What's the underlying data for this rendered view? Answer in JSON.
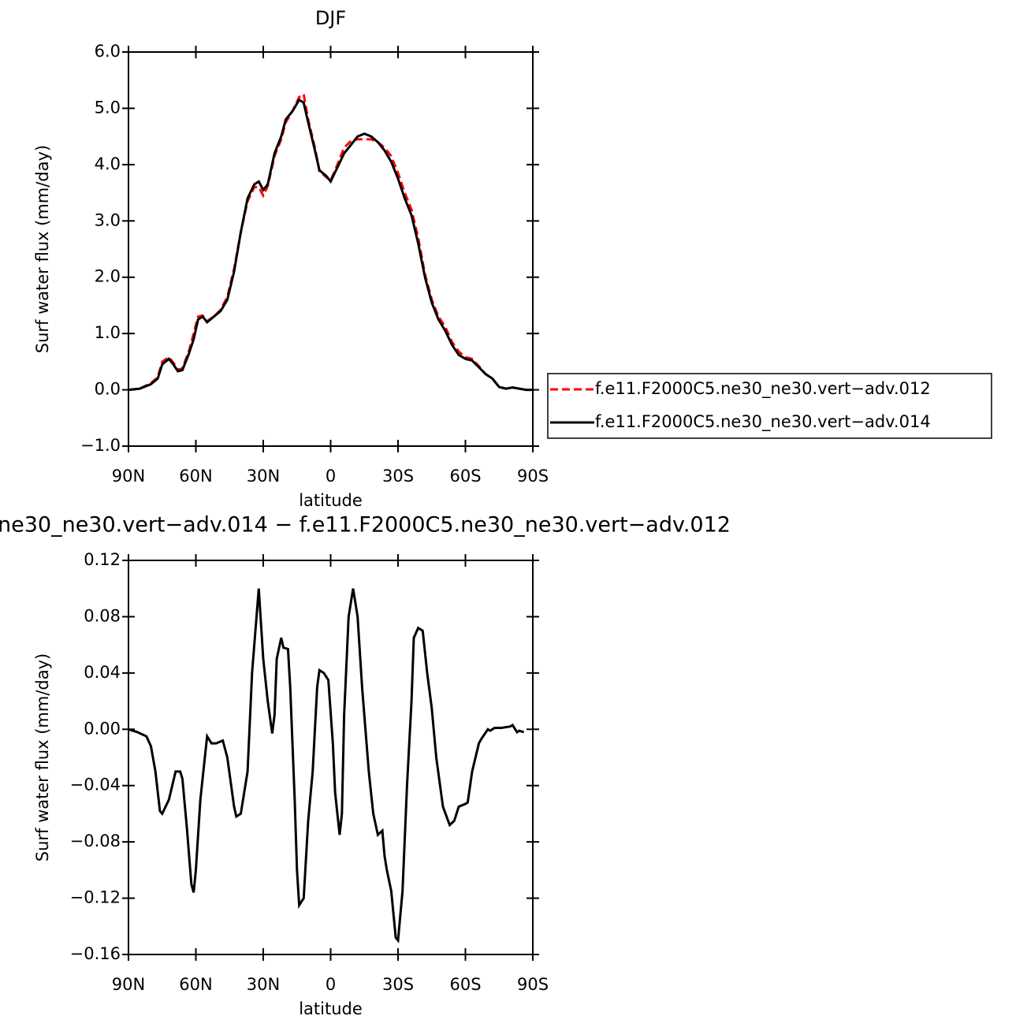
{
  "chart_data": [
    {
      "type": "line",
      "title": "DJF",
      "ylabel": "Surf water flux (mm/day)",
      "xlabel": "latitude",
      "xlim": [
        90,
        -90
      ],
      "ylim": [
        -1,
        6
      ],
      "xticks": [
        {
          "value": 90,
          "label": "90N"
        },
        {
          "value": 60,
          "label": "60N"
        },
        {
          "value": 30,
          "label": "30N"
        },
        0,
        {
          "value": -30,
          "label": "30S"
        },
        {
          "value": -60,
          "label": "60S"
        },
        {
          "value": -90,
          "label": "90S"
        }
      ],
      "yticks": [
        {
          "value": 6,
          "label": "6.0"
        },
        {
          "value": 5,
          "label": "5.0"
        },
        {
          "value": 4,
          "label": "4.0"
        },
        {
          "value": 3,
          "label": "3.0"
        },
        {
          "value": 2,
          "label": "2.0"
        },
        {
          "value": 1,
          "label": "1.0"
        },
        {
          "value": 0,
          "label": "0.0"
        },
        {
          "value": -1,
          "label": "−1.0"
        }
      ],
      "legend": "right",
      "x": [
        90,
        85,
        80,
        77,
        75,
        72,
        70,
        68,
        66,
        63,
        61,
        59,
        57,
        55,
        52,
        49,
        46,
        43,
        40,
        37,
        34,
        32,
        30,
        28,
        25,
        22,
        20,
        17,
        14,
        12,
        10,
        7,
        5,
        2,
        0,
        -3,
        -6,
        -9,
        -12,
        -15,
        -18,
        -21,
        -24,
        -27,
        -30,
        -33,
        -36,
        -39,
        -42,
        -45,
        -48,
        -51,
        -54,
        -57,
        -60,
        -63,
        -66,
        -69,
        -72,
        -75,
        -78,
        -81,
        -84,
        -87,
        -90
      ],
      "series": [
        {
          "name": "f.e11.F2000C5.ne30_ne30.vert−adv.012",
          "color": "#ff0000",
          "style": "dashed",
          "values": [
            0.0,
            0.02,
            0.12,
            0.22,
            0.5,
            0.58,
            0.48,
            0.36,
            0.38,
            0.7,
            1.0,
            1.3,
            1.32,
            1.22,
            1.3,
            1.42,
            1.65,
            2.15,
            2.8,
            3.35,
            3.6,
            3.6,
            3.45,
            3.62,
            4.15,
            4.45,
            4.75,
            4.95,
            5.2,
            5.25,
            4.8,
            4.3,
            3.88,
            3.78,
            3.72,
            4.0,
            4.3,
            4.42,
            4.45,
            4.45,
            4.45,
            4.4,
            4.3,
            4.15,
            3.85,
            3.5,
            3.2,
            2.7,
            2.05,
            1.6,
            1.3,
            1.12,
            0.85,
            0.68,
            0.58,
            0.55,
            0.42,
            0.28,
            0.2,
            0.05,
            0.02,
            0.04,
            0.02,
            0.0,
            0.0
          ]
        },
        {
          "name": "f.e11.F2000C5.ne30_ne30.vert−adv.014",
          "color": "#000000",
          "style": "solid",
          "values": [
            0.0,
            0.02,
            0.1,
            0.2,
            0.45,
            0.55,
            0.45,
            0.33,
            0.35,
            0.65,
            0.9,
            1.25,
            1.3,
            1.2,
            1.3,
            1.4,
            1.6,
            2.1,
            2.8,
            3.4,
            3.65,
            3.7,
            3.55,
            3.65,
            4.2,
            4.5,
            4.8,
            4.95,
            5.15,
            5.1,
            4.75,
            4.25,
            3.9,
            3.8,
            3.7,
            3.95,
            4.2,
            4.35,
            4.5,
            4.55,
            4.5,
            4.4,
            4.25,
            4.05,
            3.75,
            3.4,
            3.1,
            2.6,
            2.0,
            1.55,
            1.25,
            1.05,
            0.8,
            0.62,
            0.55,
            0.52,
            0.4,
            0.28,
            0.2,
            0.05,
            0.02,
            0.04,
            0.02,
            0.0,
            0.0
          ]
        }
      ]
    },
    {
      "type": "line",
      "title": "ne30_ne30.vert−adv.014 − f.e11.F2000C5.ne30_ne30.vert−adv.012",
      "ylabel": "Surf water flux (mm/day)",
      "xlabel": "latitude",
      "xlim": [
        90,
        -90
      ],
      "ylim": [
        -0.16,
        0.12
      ],
      "xticks": [
        {
          "value": 90,
          "label": "90N"
        },
        {
          "value": 60,
          "label": "60N"
        },
        {
          "value": 30,
          "label": "30N"
        },
        0,
        {
          "value": -30,
          "label": "30S"
        },
        {
          "value": -60,
          "label": "60S"
        },
        {
          "value": -90,
          "label": "90S"
        }
      ],
      "yticks": [
        {
          "value": 0.12,
          "label": "0.12"
        },
        {
          "value": 0.08,
          "label": "0.08"
        },
        {
          "value": 0.04,
          "label": "0.04"
        },
        {
          "value": 0,
          "label": "0.00"
        },
        {
          "value": -0.04,
          "label": "−0.04"
        },
        {
          "value": -0.08,
          "label": "−0.08"
        },
        {
          "value": -0.12,
          "label": "−0.12"
        },
        {
          "value": -0.16,
          "label": "−0.16"
        }
      ],
      "x": [
        90,
        86,
        82,
        80,
        78,
        76,
        75,
        72,
        69,
        67,
        66,
        64,
        62,
        61,
        60,
        58,
        56,
        55,
        53,
        51,
        48,
        46,
        43,
        42,
        40,
        37,
        35,
        32,
        30,
        28,
        26,
        25,
        24,
        22,
        21,
        19,
        18,
        16,
        15,
        14,
        12,
        10,
        8,
        6,
        5,
        3,
        1,
        -1,
        -2,
        -4,
        -5,
        -6,
        -8,
        -10,
        -12,
        -14,
        -17,
        -19,
        -21,
        -23,
        -24,
        -25,
        -27,
        -29,
        -30,
        -32,
        -34,
        -36,
        -37,
        -39,
        -41,
        -43,
        -45,
        -47,
        -50,
        -53,
        -55,
        -57,
        -60,
        -61,
        -63,
        -66,
        -67,
        -70,
        -71,
        -73,
        -76,
        -80,
        -81,
        -83,
        -84,
        -86
      ],
      "series": [
        {
          "name": null,
          "color": "#000000",
          "style": "solid",
          "values": [
            0,
            -0.002,
            -0.005,
            -0.012,
            -0.03,
            -0.058,
            -0.06,
            -0.05,
            -0.03,
            -0.03,
            -0.035,
            -0.07,
            -0.11,
            -0.116,
            -0.1,
            -0.05,
            -0.02,
            -0.005,
            -0.01,
            -0.01,
            -0.008,
            -0.02,
            -0.055,
            -0.062,
            -0.06,
            -0.03,
            0.04,
            0.1,
            0.05,
            0.02,
            -0.003,
            0.01,
            0.05,
            0.065,
            0.058,
            0.057,
            0.03,
            -0.05,
            -0.1,
            -0.125,
            -0.12,
            -0.065,
            -0.03,
            0.03,
            0.042,
            0.04,
            0.035,
            -0.01,
            -0.045,
            -0.075,
            -0.06,
            0.01,
            0.08,
            0.1,
            0.08,
            0.03,
            -0.03,
            -0.06,
            -0.075,
            -0.072,
            -0.09,
            -0.1,
            -0.115,
            -0.148,
            -0.15,
            -0.115,
            -0.04,
            0.02,
            0.065,
            0.072,
            0.07,
            0.04,
            0.015,
            -0.02,
            -0.055,
            -0.068,
            -0.065,
            -0.055,
            -0.053,
            -0.052,
            -0.03,
            -0.01,
            -0.007,
            0,
            -0.001,
            0.001,
            0.001,
            0.002,
            0.003,
            -0.002,
            -0.001,
            -0.002
          ]
        }
      ]
    }
  ]
}
